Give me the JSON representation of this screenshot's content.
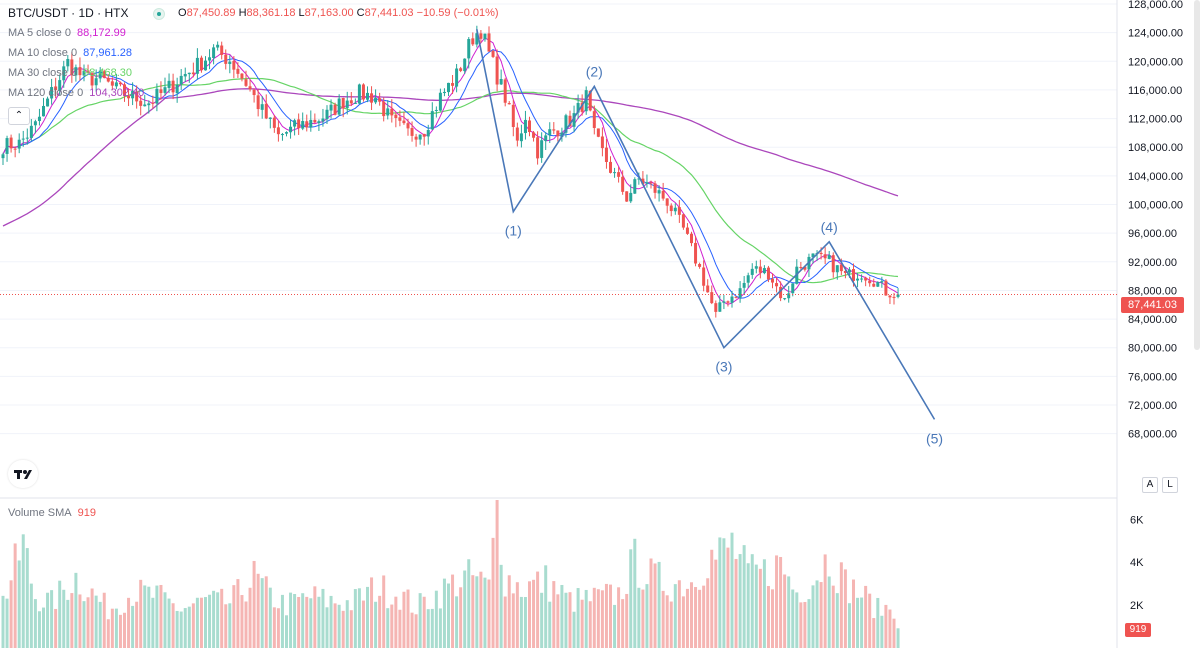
{
  "header": {
    "symbol": "BTC/USDT · 1D · HTX",
    "ohlc": {
      "o_label": "O",
      "o": "87,450.89",
      "h_label": "H",
      "h": "88,361.18",
      "l_label": "L",
      "l": "87,163.00",
      "c_label": "C",
      "c": "87,441.03",
      "change": "−10.59 (−0.01%)"
    },
    "ma": [
      {
        "label": "MA 5 close 0",
        "value": "88,172.99",
        "color": "#d020d0"
      },
      {
        "label": "MA 10 close 0",
        "value": "87,961.28",
        "color": "#2962ff"
      },
      {
        "label": "MA 30 close 0",
        "value": "98,468.30",
        "color": "#66d466"
      },
      {
        "label": "MA 120 close 0",
        "value": "104,302.40",
        "color": "#ab47bc"
      }
    ]
  },
  "volume": {
    "label": "Volume SMA",
    "value": "919",
    "badge": "919"
  },
  "price_badge": "87,441.03",
  "buttons": {
    "auto": "A",
    "log": "L",
    "collapse": "⌃"
  },
  "colors": {
    "up": "#26a69a",
    "down": "#ef5350",
    "up_vol": "#a8dccf",
    "down_vol": "#f5b5b3",
    "wave": "#4a78b8",
    "grid": "#f0f3fa"
  },
  "chart_data": {
    "type": "candlestick",
    "title": "BTC/USDT · 1D · HTX",
    "ylim": [
      66000,
      128000
    ],
    "y_ticks": [
      "128,000.00",
      "124,000.00",
      "120,000.00",
      "116,000.00",
      "112,000.00",
      "108,000.00",
      "104,000.00",
      "100,000.00",
      "96,000.00",
      "92,000.00",
      "88,000.00",
      "84,000.00",
      "80,000.00",
      "76,000.00",
      "72,000.00",
      "68,000.00"
    ],
    "y_tick_values": [
      128000,
      124000,
      120000,
      116000,
      112000,
      108000,
      104000,
      100000,
      96000,
      92000,
      88000,
      84000,
      80000,
      76000,
      72000,
      68000
    ],
    "vol_ticks": [
      "6K",
      "4K",
      "2K"
    ],
    "vol_tick_values": [
      6000,
      4000,
      2000
    ],
    "vol_ylim": [
      0,
      6900
    ],
    "last_price": 87441.03,
    "wave_points": [
      {
        "label": "(1)",
        "price": 99000
      },
      {
        "label": "(2)",
        "price": 116500
      },
      {
        "label": "(3)",
        "price": 80000
      },
      {
        "label": "(4)",
        "price": 94800
      },
      {
        "label": "(5)",
        "price": 70000
      }
    ],
    "close_anchors": [
      [
        0,
        108200
      ],
      [
        4,
        108500
      ],
      [
        8,
        111000
      ],
      [
        12,
        115600
      ],
      [
        16,
        119800
      ],
      [
        20,
        117600
      ],
      [
        24,
        117600
      ],
      [
        28,
        116000
      ],
      [
        32,
        115000
      ],
      [
        36,
        114300
      ],
      [
        40,
        115800
      ],
      [
        44,
        117800
      ],
      [
        48,
        119400
      ],
      [
        52,
        121500
      ],
      [
        56,
        120200
      ],
      [
        60,
        117000
      ],
      [
        64,
        113000
      ],
      [
        68,
        109500
      ],
      [
        72,
        110700
      ],
      [
        76,
        111600
      ],
      [
        80,
        112500
      ],
      [
        84,
        114500
      ],
      [
        88,
        115500
      ],
      [
        92,
        115000
      ],
      [
        96,
        111500
      ],
      [
        100,
        110000
      ],
      [
        104,
        110500
      ],
      [
        108,
        115000
      ],
      [
        112,
        118000
      ],
      [
        116,
        123400
      ],
      [
        118,
        124500
      ],
      [
        120,
        121000
      ],
      [
        124,
        115000
      ],
      [
        127,
        108500
      ],
      [
        129,
        112500
      ],
      [
        132,
        107500
      ],
      [
        135,
        110000
      ],
      [
        138,
        111000
      ],
      [
        141,
        112300
      ],
      [
        144,
        115000
      ],
      [
        146,
        109500
      ],
      [
        150,
        105000
      ],
      [
        154,
        101000
      ],
      [
        157,
        103500
      ],
      [
        160,
        102500
      ],
      [
        164,
        100500
      ],
      [
        168,
        96500
      ],
      [
        172,
        91000
      ],
      [
        176,
        84500
      ],
      [
        178,
        86500
      ],
      [
        182,
        88000
      ],
      [
        185,
        91000
      ],
      [
        189,
        90500
      ],
      [
        193,
        86500
      ],
      [
        196,
        91000
      ],
      [
        200,
        92500
      ],
      [
        204,
        92000
      ],
      [
        208,
        90000
      ],
      [
        212,
        90500
      ],
      [
        215,
        89500
      ],
      [
        218,
        87900
      ],
      [
        221,
        87441
      ]
    ],
    "volume_anchors": [
      [
        0,
        2200
      ],
      [
        5,
        4800
      ],
      [
        8,
        2400
      ],
      [
        12,
        2100
      ],
      [
        18,
        3300
      ],
      [
        26,
        1800
      ],
      [
        32,
        2600
      ],
      [
        38,
        2400
      ],
      [
        44,
        1800
      ],
      [
        50,
        2200
      ],
      [
        56,
        2100
      ],
      [
        62,
        3300
      ],
      [
        66,
        2400
      ],
      [
        70,
        2000
      ],
      [
        76,
        2400
      ],
      [
        80,
        2200
      ],
      [
        86,
        2100
      ],
      [
        92,
        2800
      ],
      [
        98,
        2500
      ],
      [
        102,
        1900
      ],
      [
        108,
        2600
      ],
      [
        112,
        3100
      ],
      [
        116,
        3300
      ],
      [
        120,
        2800
      ],
      [
        122,
        6900
      ],
      [
        124,
        3300
      ],
      [
        128,
        2800
      ],
      [
        134,
        3100
      ],
      [
        140,
        2200
      ],
      [
        146,
        2300
      ],
      [
        152,
        2500
      ],
      [
        156,
        4000
      ],
      [
        160,
        3300
      ],
      [
        164,
        3000
      ],
      [
        170,
        3100
      ],
      [
        174,
        4300
      ],
      [
        176,
        4200
      ],
      [
        180,
        4800
      ],
      [
        184,
        3400
      ],
      [
        188,
        3500
      ],
      [
        192,
        3900
      ],
      [
        196,
        2600
      ],
      [
        200,
        3200
      ],
      [
        204,
        4300
      ],
      [
        208,
        3000
      ],
      [
        212,
        2500
      ],
      [
        216,
        1800
      ],
      [
        220,
        1900
      ],
      [
        221,
        919
      ]
    ]
  }
}
